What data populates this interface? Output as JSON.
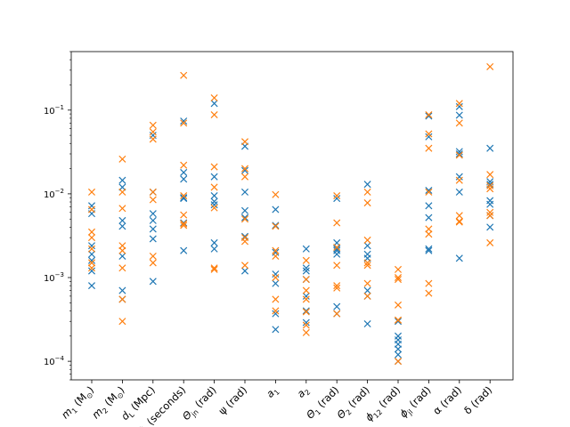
{
  "chart_data": {
    "type": "scatter",
    "title": "",
    "xlabel": "",
    "ylabel": "",
    "yscale": "log",
    "ylim": [
      6e-05,
      0.5
    ],
    "yticks": [
      {
        "value": 0.0001,
        "base": "10",
        "exp": "−4"
      },
      {
        "value": 0.001,
        "base": "10",
        "exp": "−3"
      },
      {
        "value": 0.01,
        "base": "10",
        "exp": "−2"
      },
      {
        "value": 0.1,
        "base": "10",
        "exp": "−1"
      }
    ],
    "marker": "x",
    "grid": false,
    "legend": "none",
    "categories": [
      "m1 (M⊙)",
      "m2 (M⊙)",
      "dL (Mpc)",
      "tc (seconds)",
      "Θjn (rad)",
      "ψ (rad)",
      "a1",
      "a2",
      "Θ1 (rad)",
      "Θ2 (rad)",
      "ϕ12 (rad)",
      "ϕjl (rad)",
      "α (rad)",
      "δ (rad)"
    ],
    "category_labels": [
      {
        "main": "m",
        "sub": "1",
        "rest": " (M",
        "sun": true,
        "end": ")"
      },
      {
        "main": "m",
        "sub": "2",
        "rest": " (M",
        "sun": true,
        "end": ")"
      },
      {
        "main": "d",
        "sub": "L",
        "rest": " (Mpc)"
      },
      {
        "main": "t",
        "sub": "c",
        "rest": " (seconds)"
      },
      {
        "main": "Θ",
        "sub": "jn",
        "rest": " (rad)"
      },
      {
        "main": "ψ",
        "sub": "",
        "rest": " (rad)"
      },
      {
        "main": "a",
        "sub": "1",
        "rest": ""
      },
      {
        "main": "a",
        "sub": "2",
        "rest": ""
      },
      {
        "main": "Θ",
        "sub": "1",
        "rest": " (rad)"
      },
      {
        "main": "Θ",
        "sub": "2",
        "rest": " (rad)"
      },
      {
        "main": "ϕ",
        "sub": "12",
        "rest": " (rad)"
      },
      {
        "main": "ϕ",
        "sub": "jl",
        "rest": " (rad)"
      },
      {
        "main": "α",
        "sub": "",
        "rest": " (rad)"
      },
      {
        "main": "δ",
        "sub": "",
        "rest": " (rad)"
      }
    ],
    "series": [
      {
        "color": "#1f77b4",
        "values": [
          [
            0.0072,
            0.0058,
            0.0024,
            0.0019,
            0.0016,
            0.0012,
            0.0008
          ],
          [
            0.0145,
            0.012,
            0.0048,
            0.0041,
            0.0018,
            0.0007,
            0.00055
          ],
          [
            0.05,
            0.0105,
            0.0058,
            0.0048,
            0.0038,
            0.0029,
            0.0009
          ],
          [
            0.074,
            0.018,
            0.015,
            0.009,
            0.0088,
            0.0045,
            0.0021
          ],
          [
            0.12,
            0.016,
            0.0095,
            0.0081,
            0.0074,
            0.0026,
            0.0022
          ],
          [
            0.037,
            0.019,
            0.0105,
            0.0063,
            0.0052,
            0.0031,
            0.0012
          ],
          [
            0.0065,
            0.0042,
            0.002,
            0.0011,
            0.00085,
            0.00037,
            0.00024
          ],
          [
            0.0022,
            0.0013,
            0.0012,
            0.00095,
            0.0006,
            0.0004,
            0.00029
          ],
          [
            0.0088,
            0.0026,
            0.0022,
            0.0021,
            0.0019,
            0.00045,
            0.00037
          ],
          [
            0.013,
            0.0024,
            0.0019,
            0.0017,
            0.0007,
            0.0006,
            0.00028
          ],
          [
            0.0003,
            0.0002,
            0.00018,
            0.00016,
            0.00014,
            0.00012,
            0.0001
          ],
          [
            0.085,
            0.048,
            0.011,
            0.0072,
            0.0052,
            0.0022,
            0.0021
          ],
          [
            0.11,
            0.087,
            0.032,
            0.03,
            0.016,
            0.0105,
            0.0017
          ],
          [
            0.035,
            0.014,
            0.013,
            0.0083,
            0.0075,
            0.0055,
            0.004
          ]
        ]
      },
      {
        "color": "#ff7f0e",
        "values": [
          [
            0.0105,
            0.0065,
            0.0035,
            0.003,
            0.0022,
            0.0015,
            0.0013
          ],
          [
            0.026,
            0.0105,
            0.0067,
            0.0024,
            0.0021,
            0.0013,
            0.00055,
            0.0003
          ],
          [
            0.066,
            0.055,
            0.045,
            0.0105,
            0.0085,
            0.0018,
            0.0015
          ],
          [
            0.26,
            0.07,
            0.022,
            0.0095,
            0.0056,
            0.0042,
            0.0044
          ],
          [
            0.14,
            0.088,
            0.021,
            0.012,
            0.0068,
            0.0013,
            0.00125
          ],
          [
            0.042,
            0.02,
            0.016,
            0.005,
            0.003,
            0.0027,
            0.0014
          ],
          [
            0.0098,
            0.0041,
            0.0021,
            0.0018,
            0.001,
            0.00055,
            0.0004
          ],
          [
            0.0016,
            0.00095,
            0.0007,
            0.00055,
            0.00039,
            0.00027,
            0.00022
          ],
          [
            0.0095,
            0.0045,
            0.0023,
            0.0014,
            0.0008,
            0.00075,
            0.00037
          ],
          [
            0.0105,
            0.0078,
            0.0028,
            0.0015,
            0.0014,
            0.00085,
            0.0006
          ],
          [
            0.00125,
            0.001,
            0.00095,
            0.00047,
            0.00031,
            0.00031,
            0.0001
          ],
          [
            0.088,
            0.052,
            0.035,
            0.0105,
            0.0038,
            0.0033,
            0.00085,
            0.00065
          ],
          [
            0.12,
            0.07,
            0.029,
            0.0145,
            0.0055,
            0.0046,
            0.0047
          ],
          [
            0.33,
            0.017,
            0.0125,
            0.0115,
            0.006,
            0.0055,
            0.0026
          ]
        ]
      }
    ]
  }
}
